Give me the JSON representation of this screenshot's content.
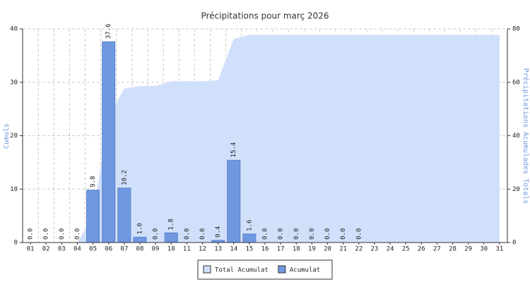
{
  "chart_data": {
    "type": "bar",
    "title": "Précipitations pour març 2026",
    "ylabel": "Cumuls",
    "y2label": "Précipitations Acumulades Totals",
    "categories": [
      "01",
      "02",
      "03",
      "04",
      "05",
      "06",
      "07",
      "08",
      "09",
      "10",
      "11",
      "12",
      "13",
      "14",
      "15",
      "16",
      "17",
      "18",
      "19",
      "20",
      "21",
      "22",
      "23",
      "24",
      "25",
      "26",
      "27",
      "28",
      "29",
      "30",
      "31"
    ],
    "series": [
      {
        "name": "Total Acumulat",
        "color": "#d0dffa",
        "axis": "y2",
        "values": [
          0,
          0,
          0,
          0,
          9.8,
          47.4,
          57.6,
          58.6,
          58.6,
          60.4,
          60.4,
          60.4,
          60.8,
          76.2,
          77.8,
          77.8,
          77.8,
          77.8,
          77.8,
          77.8,
          77.8,
          77.8,
          77.8,
          77.8,
          77.8,
          77.8,
          77.8,
          77.8,
          77.8,
          77.8,
          77.8
        ]
      },
      {
        "name": "Acumulat",
        "color": "#6f98e0",
        "values": [
          0,
          0,
          0,
          0,
          9.8,
          37.6,
          10.2,
          1.0,
          0,
          1.8,
          0,
          0,
          0.4,
          15.4,
          1.6,
          0,
          0,
          0,
          0,
          0,
          0,
          0,
          null,
          null,
          null,
          null,
          null,
          null,
          null,
          null,
          null
        ],
        "value_labels": [
          "0.0",
          "0.0",
          "0.0",
          "0.0",
          "9.8",
          "37.6",
          "10.2",
          "1.0",
          "0.0",
          "1.8",
          "0.0",
          "0.0",
          "0.4",
          "15.4",
          "1.6",
          "0.0",
          "0.0",
          "0.0",
          "0.0",
          "0.0",
          "0.0",
          "0.0",
          null,
          null,
          null,
          null,
          null,
          null,
          null,
          null,
          null
        ]
      }
    ],
    "ylim": [
      0,
      40
    ],
    "yticks": [
      0,
      10,
      20,
      30,
      40
    ],
    "y2lim": [
      0,
      80
    ],
    "y2ticks": [
      0,
      20,
      40,
      60,
      80
    ],
    "grid": true
  }
}
